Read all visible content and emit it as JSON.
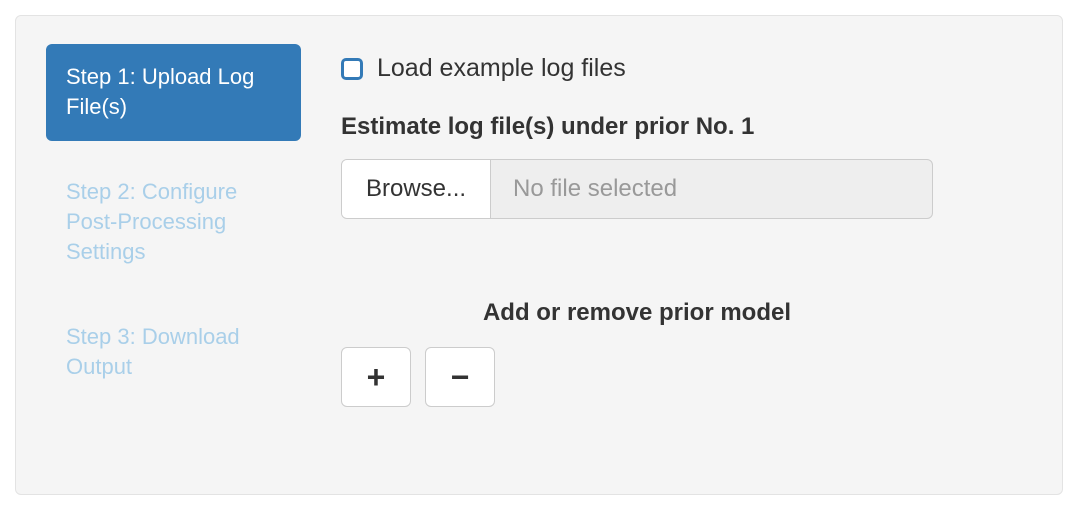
{
  "colors": {
    "panel_bg": "#f5f5f5",
    "panel_border": "#e3e3e3",
    "primary": "#337ab7",
    "inactive_text": "#a9cfe9",
    "text": "#333333",
    "muted": "#999999",
    "input_border": "#cccccc",
    "input_bg": "#eeeeee",
    "white": "#ffffff"
  },
  "sidebar": {
    "items": [
      {
        "label": "Step 1: Upload Log File(s)",
        "active": true
      },
      {
        "label": "Step 2: Configure Post-Processing Settings",
        "active": false
      },
      {
        "label": "Step 3: Download Output",
        "active": false
      }
    ]
  },
  "main": {
    "example_checkbox_label": "Load example log files",
    "estimate_heading": "Estimate log file(s) under prior No. 1",
    "file_input": {
      "browse_label": "Browse...",
      "placeholder": "No file selected"
    },
    "prior_heading": "Add or remove prior model",
    "buttons": {
      "add_glyph": "+",
      "remove_glyph": "−"
    }
  }
}
